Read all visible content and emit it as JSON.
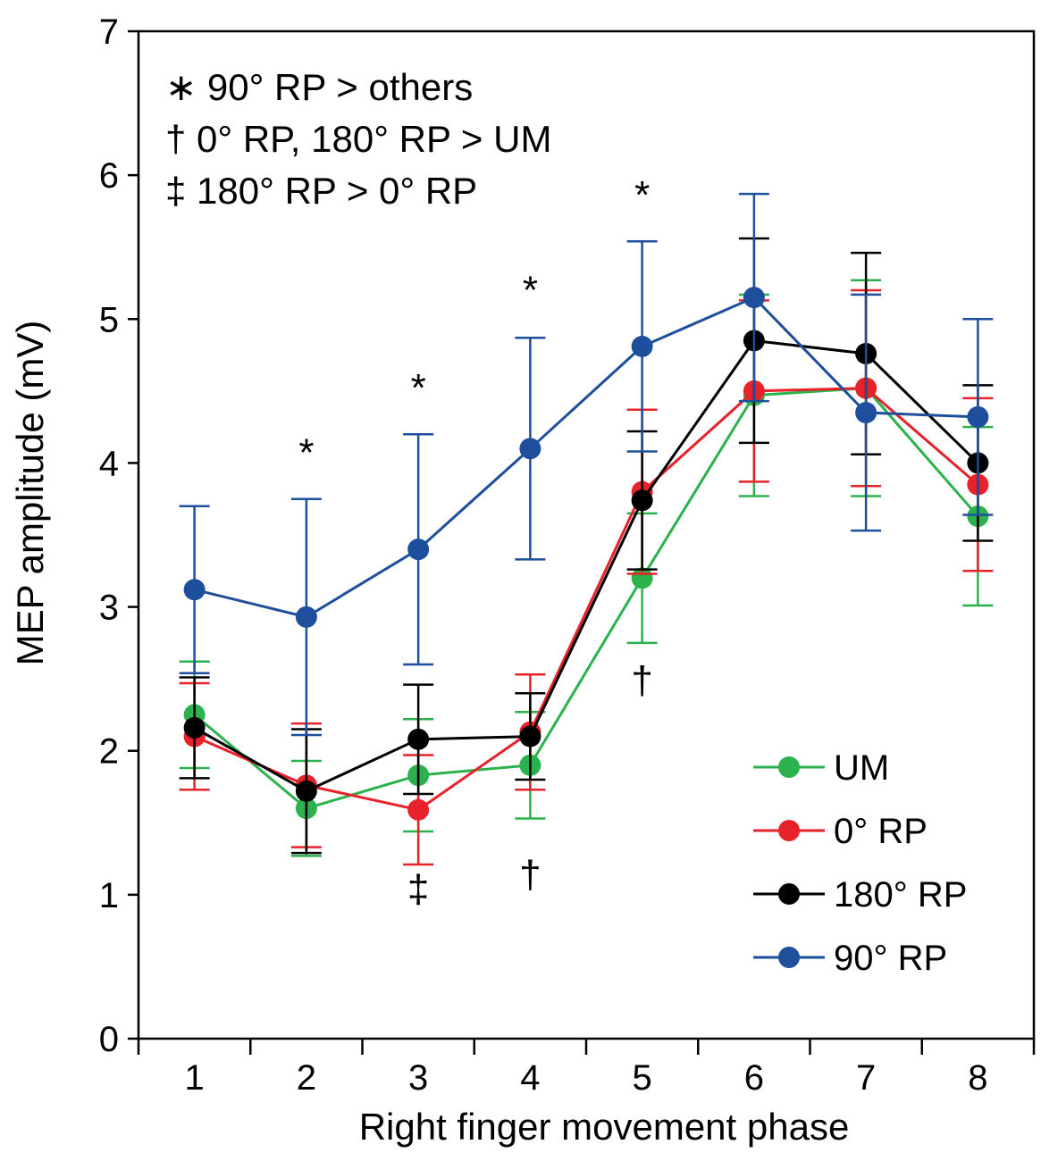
{
  "chart_data": {
    "type": "line",
    "title": "",
    "xlabel": "Right finger movement phase",
    "ylabel": "MEP amplitude (mV)",
    "x": [
      1,
      2,
      3,
      4,
      5,
      6,
      7,
      8
    ],
    "ylim": [
      0,
      7
    ],
    "yticks": [
      "0",
      "1",
      "2",
      "3",
      "4",
      "5",
      "6",
      "7"
    ],
    "xticks": [
      "1",
      "2",
      "3",
      "4",
      "5",
      "6",
      "7",
      "8"
    ],
    "grid": false,
    "legend_position": "bottom-right",
    "series": [
      {
        "name": "UM",
        "color": "#2bb24c",
        "values": [
          2.25,
          1.6,
          1.83,
          1.9,
          3.2,
          4.47,
          4.52,
          3.63
        ],
        "errors": [
          0.37,
          0.33,
          0.39,
          0.37,
          0.45,
          0.7,
          0.75,
          0.62
        ]
      },
      {
        "name": "0° RP",
        "color": "#e8222a",
        "values": [
          2.1,
          1.76,
          1.59,
          2.13,
          3.8,
          4.5,
          4.52,
          3.85
        ],
        "errors": [
          0.37,
          0.43,
          0.38,
          0.4,
          0.57,
          0.63,
          0.68,
          0.6
        ]
      },
      {
        "name": "180° RP",
        "color": "#000000",
        "values": [
          2.16,
          1.72,
          2.08,
          2.1,
          3.74,
          4.85,
          4.76,
          4.0
        ],
        "errors": [
          0.35,
          0.43,
          0.38,
          0.3,
          0.48,
          0.71,
          0.7,
          0.54
        ]
      },
      {
        "name": "90° RP",
        "color": "#1e4f9c",
        "values": [
          3.12,
          2.93,
          3.4,
          4.1,
          4.81,
          5.15,
          4.35,
          4.32
        ],
        "errors": [
          0.58,
          0.82,
          0.8,
          0.77,
          0.73,
          0.72,
          0.82,
          0.68
        ]
      }
    ],
    "annotations": [
      {
        "text": "*",
        "x": 2,
        "y": 3.98
      },
      {
        "text": "*",
        "x": 3,
        "y": 4.43
      },
      {
        "text": "*",
        "x": 4,
        "y": 5.11
      },
      {
        "text": "*",
        "x": 5,
        "y": 5.77
      },
      {
        "text": "‡",
        "x": 3,
        "y": 0.95
      },
      {
        "text": "†",
        "x": 4,
        "y": 1.05
      },
      {
        "text": "†",
        "x": 5,
        "y": 2.4
      }
    ],
    "notes": [
      "∗  90° RP > others",
      "†   0° RP, 180° RP > UM",
      "‡ 180° RP > 0° RP"
    ]
  }
}
